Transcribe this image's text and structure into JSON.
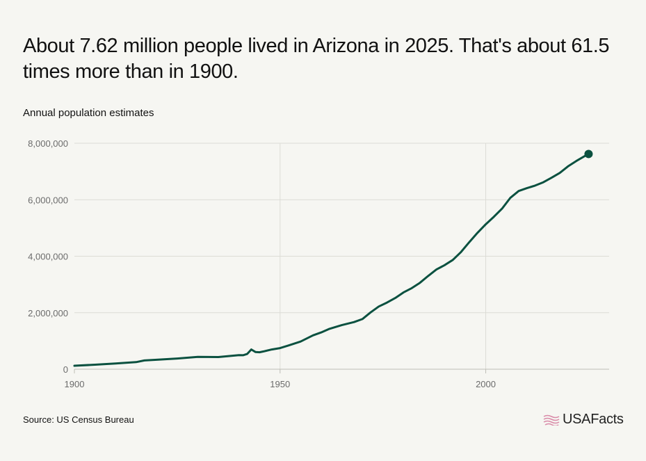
{
  "header": {
    "title": "About 7.62 million people lived in Arizona in 2025. That's about 61.5 times more than in 1900.",
    "subtitle": "Annual population estimates"
  },
  "footer": {
    "source": "Source: US Census Bureau",
    "brand": "USAFacts"
  },
  "colors": {
    "line": "#0b5140",
    "grid": "#dcdcd6",
    "background": "#f6f6f2",
    "brand_icon": "#d98aa8"
  },
  "icons": {
    "brand": "usafacts-flag-icon"
  },
  "chart_data": {
    "type": "line",
    "title": "About 7.62 million people lived in Arizona in 2025. That's about 61.5 times more than in 1900.",
    "subtitle": "Annual population estimates",
    "xlabel": "",
    "ylabel": "",
    "xlim": [
      1900,
      2030
    ],
    "ylim": [
      0,
      8000000
    ],
    "x_ticks": [
      1900,
      1950,
      2000
    ],
    "x_tick_labels": [
      "1900",
      "1950",
      "2000"
    ],
    "y_ticks": [
      0,
      2000000,
      4000000,
      6000000,
      8000000
    ],
    "y_tick_labels": [
      "0",
      "2,000,000",
      "4,000,000",
      "6,000,000",
      "8,000,000"
    ],
    "grid": true,
    "end_marker": true,
    "series": [
      {
        "x": [
          1900,
          1905,
          1910,
          1915,
          1917,
          1920,
          1925,
          1930,
          1935,
          1940,
          1941,
          1942,
          1943,
          1944,
          1945,
          1946,
          1948,
          1950,
          1952,
          1955,
          1958,
          1960,
          1962,
          1965,
          1968,
          1970,
          1972,
          1974,
          1976,
          1978,
          1980,
          1982,
          1984,
          1986,
          1988,
          1990,
          1992,
          1994,
          1996,
          1998,
          2000,
          2002,
          2004,
          2006,
          2008,
          2010,
          2012,
          2014,
          2016,
          2018,
          2020,
          2022,
          2024,
          2025
        ],
        "y": [
          124000,
          160000,
          204000,
          250000,
          310000,
          334000,
          380000,
          436000,
          430000,
          500000,
          495000,
          540000,
          700000,
          610000,
          600000,
          630000,
          700000,
          749000,
          840000,
          980000,
          1200000,
          1302000,
          1430000,
          1560000,
          1670000,
          1775000,
          2010000,
          2220000,
          2360000,
          2520000,
          2718000,
          2870000,
          3060000,
          3300000,
          3530000,
          3684000,
          3870000,
          4150000,
          4500000,
          4830000,
          5130000,
          5400000,
          5690000,
          6070000,
          6310000,
          6410000,
          6500000,
          6620000,
          6780000,
          6950000,
          7180000,
          7370000,
          7540000,
          7620000
        ]
      }
    ]
  }
}
